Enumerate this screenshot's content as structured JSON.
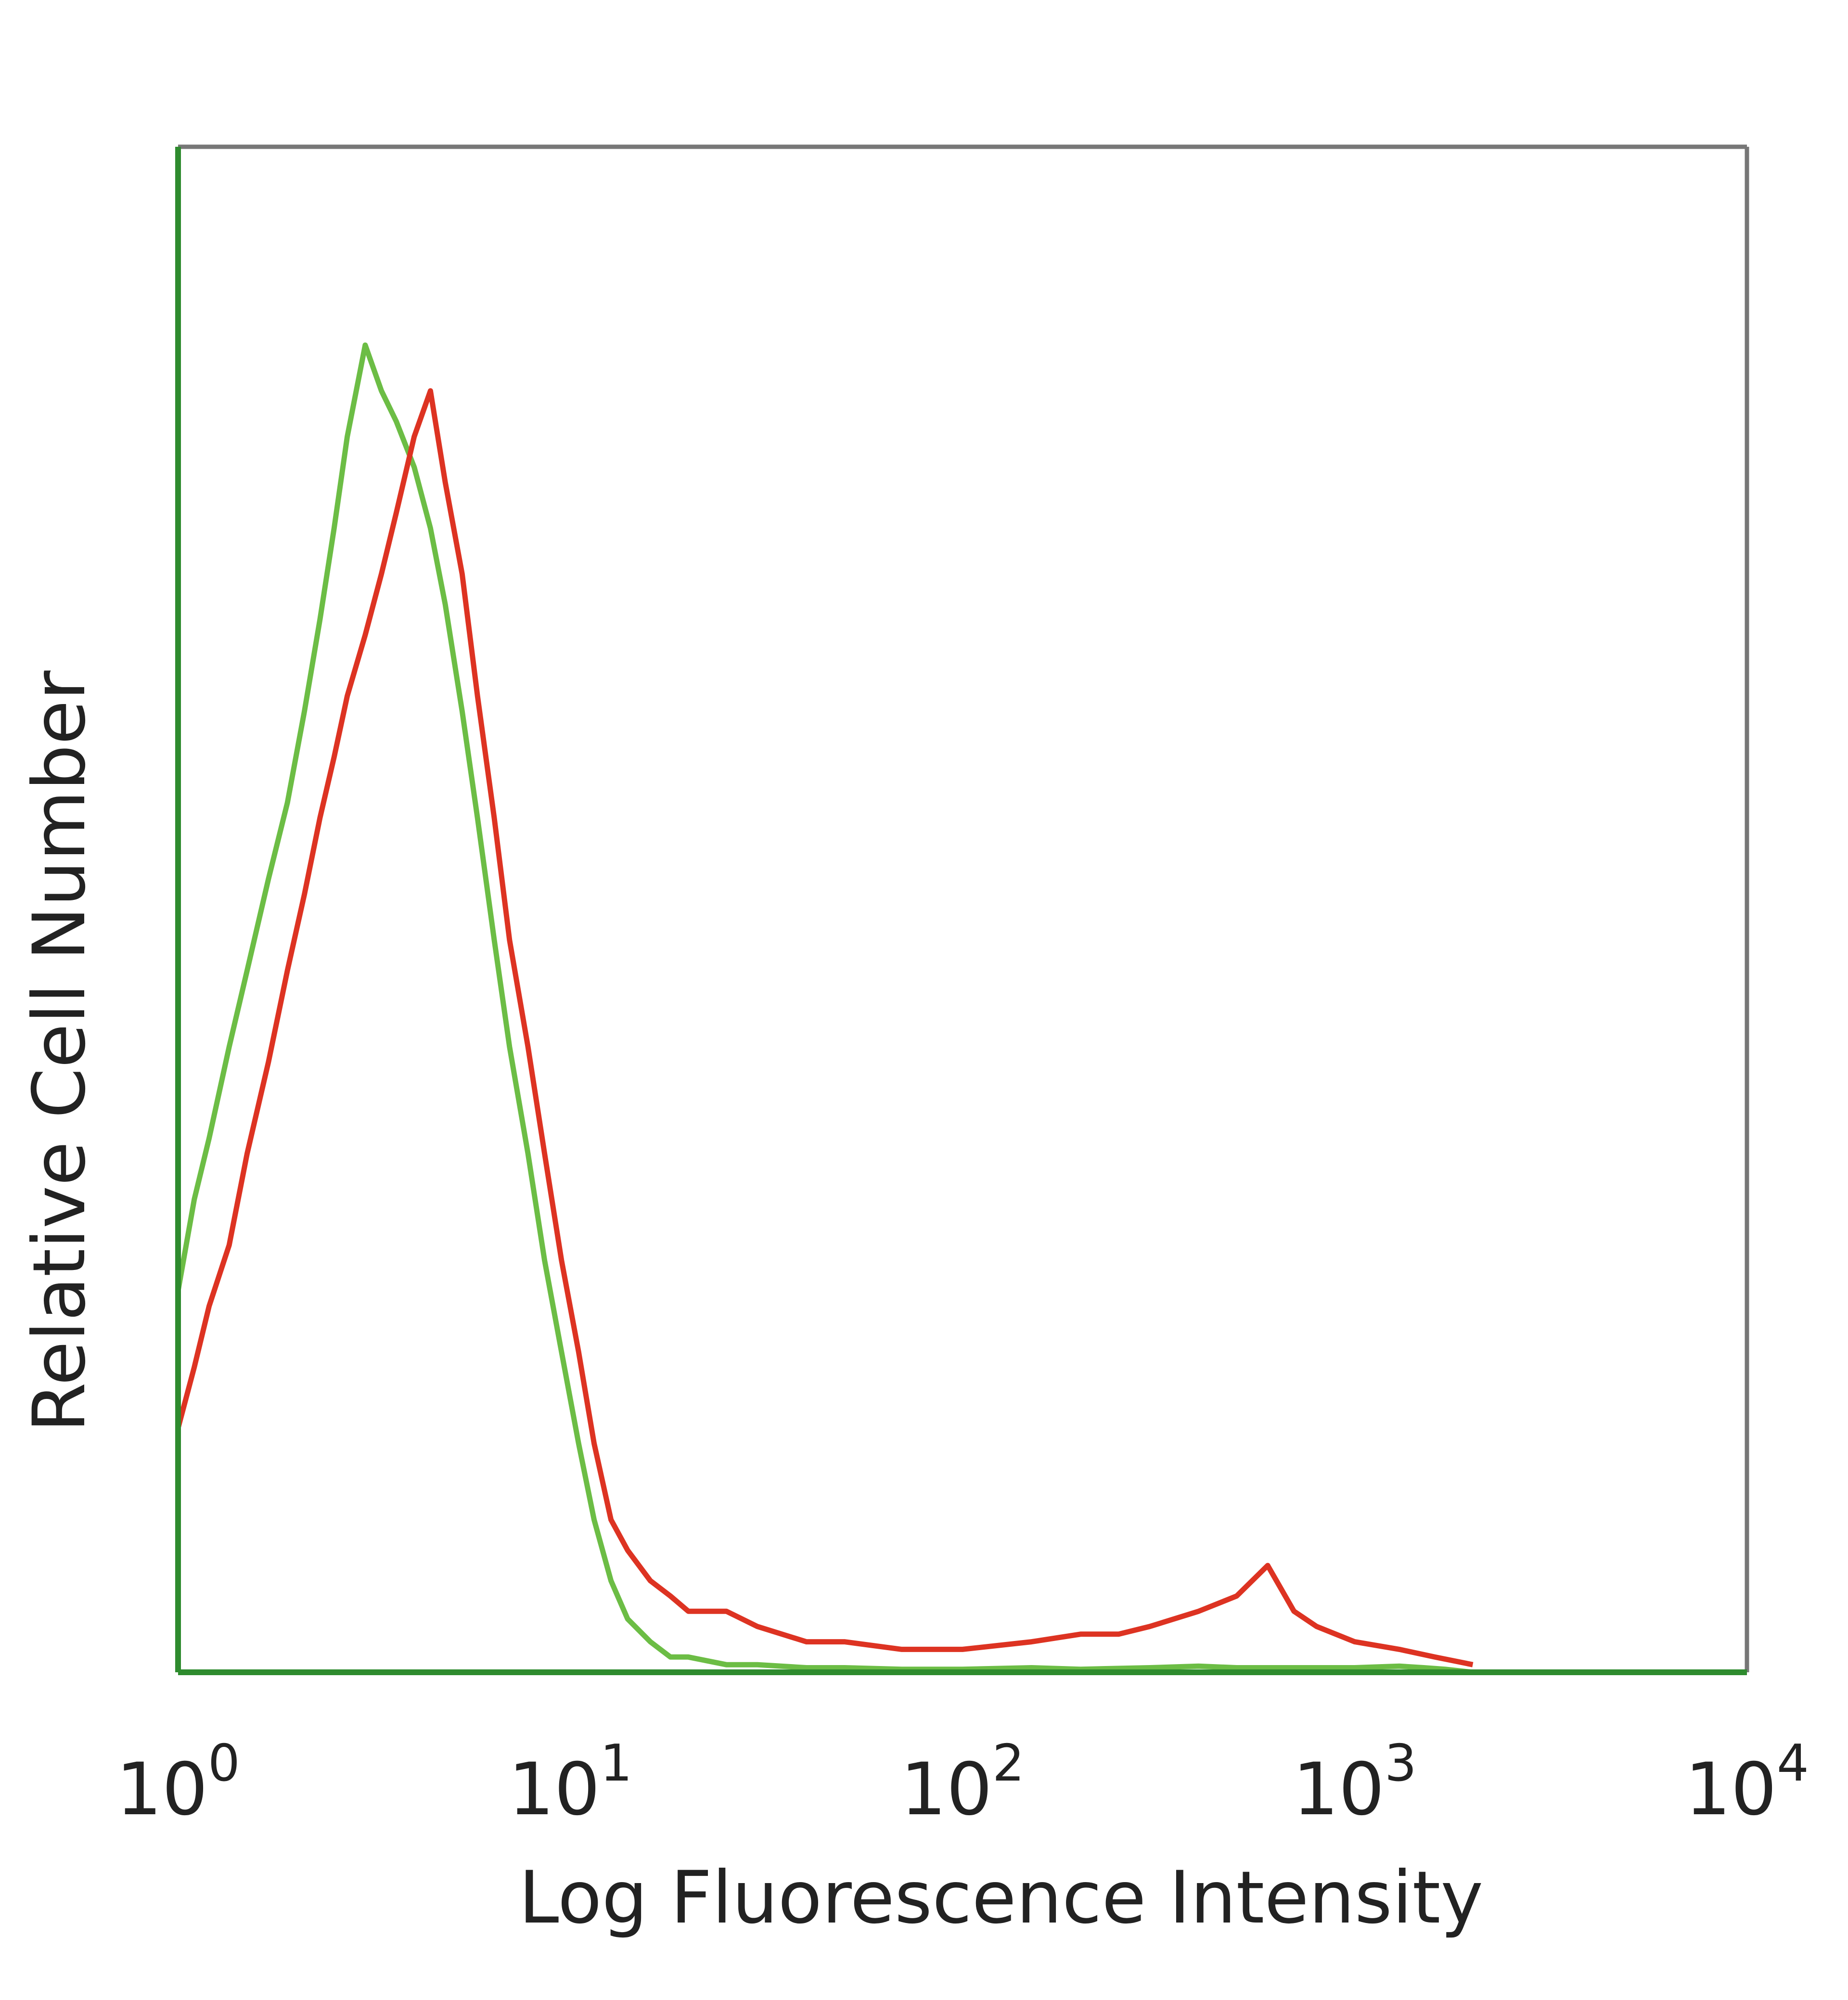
{
  "chart_data": {
    "type": "line",
    "title": "",
    "xlabel": "Log Fluorescence Intensity",
    "ylabel": "Relative Cell Number",
    "x_scale": "log",
    "xlim": [
      1,
      10000
    ],
    "ylim": [
      0,
      100
    ],
    "grid": false,
    "legend": "none",
    "x_ticks": [
      {
        "value": 1,
        "base": "10",
        "exp": "0"
      },
      {
        "value": 10,
        "base": "10",
        "exp": "1"
      },
      {
        "value": 100,
        "base": "10",
        "exp": "2"
      },
      {
        "value": 1000,
        "base": "10",
        "exp": "3"
      },
      {
        "value": 10000,
        "base": "10",
        "exp": "4"
      }
    ],
    "frame_colors": {
      "top": "#777777",
      "right": "#777777",
      "left": "#2e8b2e",
      "bottom": "#2e8b2e"
    },
    "series": [
      {
        "color": "#6cbd45",
        "x": [
          1.0,
          1.1,
          1.2,
          1.35,
          1.5,
          1.7,
          1.9,
          2.1,
          2.3,
          2.5,
          2.7,
          3.0,
          3.3,
          3.6,
          4.0,
          4.4,
          4.8,
          5.3,
          5.8,
          6.4,
          7.0,
          7.8,
          8.6,
          9.5,
          10.5,
          11.5,
          12.7,
          14,
          16,
          18,
          20,
          25,
          30,
          40,
          50,
          70,
          100,
          150,
          200,
          300,
          400,
          500,
          700,
          1000,
          1300,
          1500,
          1700,
          2000
        ],
        "y": [
          25,
          31,
          35,
          41,
          46,
          52,
          57,
          63,
          69,
          75,
          81,
          87,
          84,
          82,
          79,
          75,
          70,
          63,
          56,
          48,
          41,
          34,
          27,
          21,
          15,
          10,
          6,
          3.5,
          2,
          1,
          1,
          0.5,
          0.5,
          0.3,
          0.3,
          0.2,
          0.2,
          0.3,
          0.2,
          0.3,
          0.4,
          0.3,
          0.3,
          0.3,
          0.4,
          0.3,
          0.2,
          0
        ]
      },
      {
        "color": "#dd3322",
        "x": [
          1.0,
          1.1,
          1.2,
          1.35,
          1.5,
          1.7,
          1.9,
          2.1,
          2.3,
          2.5,
          2.7,
          3.0,
          3.3,
          3.6,
          4.0,
          4.4,
          4.8,
          5.3,
          5.8,
          6.4,
          7.0,
          7.8,
          8.6,
          9.5,
          10.5,
          11.5,
          12.7,
          14,
          16,
          18,
          20,
          25,
          30,
          40,
          50,
          70,
          100,
          150,
          200,
          250,
          300,
          400,
          500,
          600,
          700,
          800,
          1000,
          1300,
          1600,
          2000
        ],
        "y": [
          16,
          20,
          24,
          28,
          34,
          40,
          46,
          51,
          56,
          60,
          64,
          68,
          72,
          76,
          81,
          84,
          78,
          72,
          64,
          56,
          48,
          41,
          34,
          27,
          21,
          15,
          10,
          8,
          6,
          5,
          4,
          4,
          3,
          2,
          2,
          1.5,
          1.5,
          2,
          2.5,
          2.5,
          3,
          4,
          5,
          7,
          4,
          3,
          2,
          1.5,
          1,
          0.5
        ]
      }
    ]
  }
}
